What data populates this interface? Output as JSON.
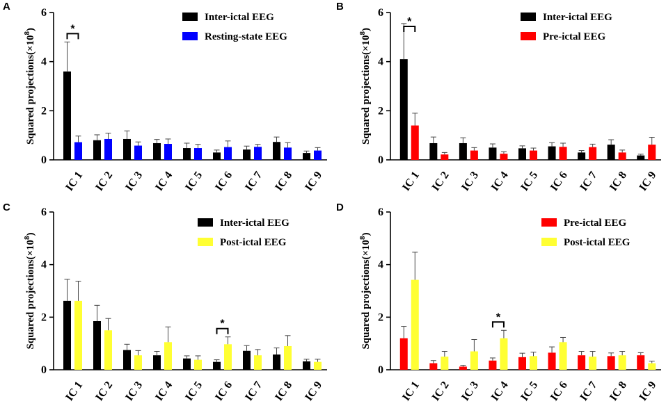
{
  "chart_data": [
    {
      "panel": "A",
      "type": "bar",
      "ylabel": "Squared projections(×10",
      "ylabel_sup": "8",
      "ylabel_close": ")",
      "ylim": [
        0,
        6
      ],
      "yticks": [
        "0",
        "2",
        "4",
        "6"
      ],
      "categories": [
        "IC 1",
        "IC 2",
        "IC 3",
        "IC 4",
        "IC 5",
        "IC 6",
        "IC 7",
        "IC 8",
        "IC 9"
      ],
      "legend_position": "top-right",
      "series": [
        {
          "name": "Inter-ictal EEG",
          "color": "#000000",
          "values": [
            3.6,
            0.8,
            0.85,
            0.68,
            0.48,
            0.3,
            0.42,
            0.73,
            0.28
          ],
          "errors": [
            1.2,
            0.22,
            0.33,
            0.15,
            0.2,
            0.1,
            0.14,
            0.2,
            0.08
          ]
        },
        {
          "name": "Resting-state EEG",
          "color": "#0000ff",
          "values": [
            0.72,
            0.85,
            0.58,
            0.65,
            0.48,
            0.52,
            0.53,
            0.5,
            0.38
          ],
          "errors": [
            0.25,
            0.24,
            0.15,
            0.2,
            0.15,
            0.25,
            0.1,
            0.2,
            0.12
          ]
        }
      ],
      "significance": [
        {
          "category_index": 0,
          "label": "*"
        }
      ]
    },
    {
      "panel": "B",
      "type": "bar",
      "ylabel": "Squared projections(×10",
      "ylabel_sup": "8",
      "ylabel_close": ")",
      "ylim": [
        0,
        6
      ],
      "yticks": [
        "0",
        "2",
        "4",
        "6"
      ],
      "categories": [
        "IC 1",
        "IC 2",
        "IC 3",
        "IC 4",
        "IC 5",
        "IC 6",
        "IC 7",
        "IC 8",
        "IC 9"
      ],
      "legend_position": "top-right",
      "series": [
        {
          "name": "Inter-ictal EEG",
          "color": "#000000",
          "values": [
            4.1,
            0.68,
            0.68,
            0.5,
            0.47,
            0.55,
            0.3,
            0.62,
            0.18
          ],
          "errors": [
            1.45,
            0.25,
            0.22,
            0.15,
            0.1,
            0.15,
            0.08,
            0.2,
            0.05
          ]
        },
        {
          "name": "Pre-ictal EEG",
          "color": "#ff0000",
          "values": [
            1.4,
            0.22,
            0.38,
            0.25,
            0.38,
            0.53,
            0.52,
            0.3,
            0.62
          ],
          "errors": [
            0.5,
            0.08,
            0.12,
            0.08,
            0.1,
            0.15,
            0.12,
            0.1,
            0.3
          ]
        }
      ],
      "significance": [
        {
          "category_index": 0,
          "label": "*"
        }
      ]
    },
    {
      "panel": "C",
      "type": "bar",
      "ylabel": "Squared projections(×10",
      "ylabel_sup": "8",
      "ylabel_close": ")",
      "ylim": [
        0,
        6
      ],
      "yticks": [
        "0",
        "2",
        "4",
        "6"
      ],
      "categories": [
        "IC 1",
        "IC 2",
        "IC 3",
        "IC 4",
        "IC 5",
        "IC 6",
        "IC 7",
        "IC 8",
        "IC 9"
      ],
      "legend_position": "top-right",
      "series": [
        {
          "name": "Inter-ictal EEG",
          "color": "#000000",
          "values": [
            2.62,
            1.85,
            0.75,
            0.55,
            0.43,
            0.3,
            0.72,
            0.58,
            0.32
          ],
          "errors": [
            0.82,
            0.6,
            0.22,
            0.15,
            0.1,
            0.08,
            0.2,
            0.25,
            0.08
          ]
        },
        {
          "name": "Post-ictal EEG",
          "color": "#ffff33",
          "values": [
            2.62,
            1.5,
            0.55,
            1.05,
            0.38,
            0.97,
            0.55,
            0.9,
            0.3
          ],
          "errors": [
            0.75,
            0.45,
            0.18,
            0.58,
            0.15,
            0.28,
            0.22,
            0.4,
            0.1
          ]
        }
      ],
      "significance": [
        {
          "category_index": 5,
          "label": "*"
        }
      ]
    },
    {
      "panel": "D",
      "type": "bar",
      "ylabel": "Squared projections(×10",
      "ylabel_sup": "8",
      "ylabel_close": ")",
      "ylim": [
        0,
        6
      ],
      "yticks": [
        "0",
        "2",
        "4",
        "6"
      ],
      "categories": [
        "IC 1",
        "IC 2",
        "IC 3",
        "IC 4",
        "IC 5",
        "IC 6",
        "IC 7",
        "IC 8",
        "IC 9"
      ],
      "legend_position": "top-right",
      "series": [
        {
          "name": "Pre-ictal EEG",
          "color": "#ff0000",
          "values": [
            1.2,
            0.25,
            0.12,
            0.35,
            0.48,
            0.65,
            0.55,
            0.52,
            0.55
          ],
          "errors": [
            0.45,
            0.1,
            0.05,
            0.1,
            0.15,
            0.22,
            0.15,
            0.12,
            0.1
          ]
        },
        {
          "name": "Post-ictal EEG",
          "color": "#ffff33",
          "values": [
            3.42,
            0.5,
            0.7,
            1.2,
            0.52,
            1.05,
            0.5,
            0.55,
            0.25
          ],
          "errors": [
            1.05,
            0.2,
            0.45,
            0.3,
            0.15,
            0.18,
            0.2,
            0.15,
            0.08
          ]
        }
      ],
      "significance": [
        {
          "category_index": 3,
          "label": "*"
        }
      ]
    }
  ]
}
